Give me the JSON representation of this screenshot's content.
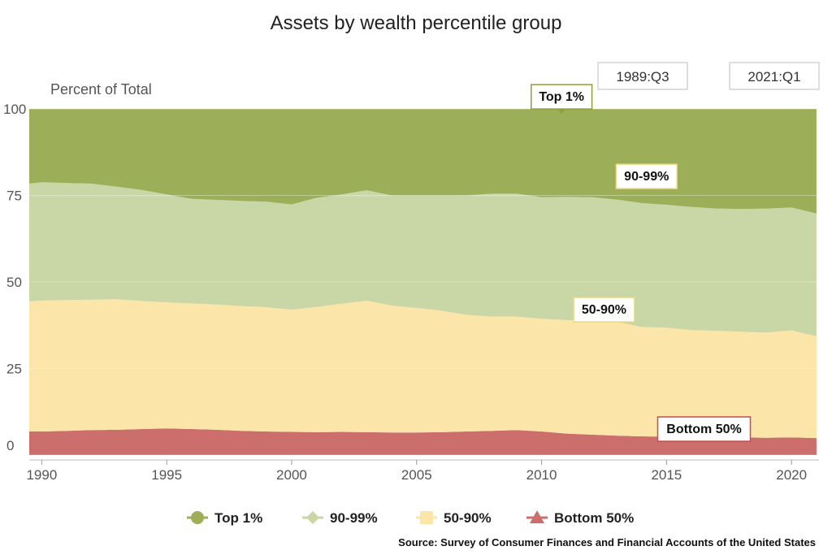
{
  "title": "Assets by wealth percentile group",
  "source": "Source: Survey of Consumer Finances and Financial Accounts of the United States",
  "date_range": {
    "start": "1989:Q3",
    "end": "2021:Q1"
  },
  "colors": {
    "top1": "#9caf58",
    "p90_99": "#c9d6a5",
    "p50_90": "#fbe5a8",
    "bottom50": "#cc6e6c",
    "callout_top1": "#8aa13c",
    "callout_bottom50": "#c0504d",
    "callout_default": "#e8d98a"
  },
  "chart_data": {
    "type": "area",
    "stacked": true,
    "ylabel": "Percent of Total",
    "xlabel": "",
    "xlim": [
      1989.5,
      2021.1
    ],
    "ylim": [
      0,
      100
    ],
    "yticks": [
      0,
      25,
      50,
      75,
      100
    ],
    "ytick_labels": [
      "0",
      "25",
      "50",
      "75",
      "100"
    ],
    "xticks": [
      1990,
      1995,
      2000,
      2005,
      2010,
      2015,
      2020
    ],
    "xtick_labels": [
      "1990",
      "1995",
      "2000",
      "2005",
      "2010",
      "2015",
      "2020"
    ],
    "grid": true,
    "legend_position": "bottom",
    "x": [
      1989.5,
      1990,
      1991,
      1992,
      1993,
      1994,
      1995,
      1996,
      1997,
      1998,
      1999,
      2000,
      2001,
      2002,
      2003,
      2004,
      2005,
      2006,
      2007,
      2008,
      2009,
      2010,
      2011,
      2012,
      2013,
      2014,
      2015,
      2016,
      2017,
      2018,
      2019,
      2020,
      2021
    ],
    "series": [
      {
        "name": "Bottom 50%",
        "key": "bottom50",
        "marker": "triangle",
        "values": [
          6.8,
          6.8,
          7.0,
          7.2,
          7.3,
          7.5,
          7.7,
          7.5,
          7.3,
          7.0,
          6.8,
          6.7,
          6.6,
          6.7,
          6.6,
          6.5,
          6.5,
          6.6,
          6.8,
          7.0,
          7.2,
          6.8,
          6.2,
          5.9,
          5.6,
          5.4,
          5.3,
          5.2,
          5.1,
          5.1,
          5.0,
          5.1,
          4.9
        ]
      },
      {
        "name": "50-90%",
        "key": "p50_90",
        "marker": "square",
        "values": [
          37.6,
          37.8,
          37.8,
          37.7,
          37.7,
          37.0,
          36.4,
          36.3,
          36.2,
          36.0,
          35.9,
          35.3,
          36.2,
          37.0,
          38.0,
          36.7,
          36.0,
          35.1,
          33.7,
          33.0,
          32.8,
          32.6,
          32.8,
          32.9,
          32.9,
          31.6,
          31.5,
          30.9,
          30.8,
          30.5,
          30.4,
          30.9,
          29.4
        ]
      },
      {
        "name": "90-99%",
        "key": "p90_99",
        "marker": "diamond",
        "values": [
          34.0,
          34.2,
          33.8,
          33.5,
          32.5,
          32.1,
          31.2,
          30.2,
          30.2,
          30.4,
          30.5,
          30.4,
          31.5,
          31.6,
          31.9,
          31.8,
          32.5,
          33.3,
          34.5,
          35.5,
          35.5,
          35.1,
          35.6,
          35.7,
          35.3,
          35.8,
          35.5,
          35.6,
          35.3,
          35.5,
          35.8,
          35.5,
          35.5
        ]
      },
      {
        "name": "Top 1%",
        "key": "top1",
        "marker": "circle",
        "values": [
          21.6,
          21.2,
          21.4,
          21.6,
          22.5,
          23.4,
          24.7,
          26.0,
          26.3,
          26.6,
          26.8,
          27.6,
          25.7,
          24.7,
          23.5,
          25.0,
          25.0,
          25.0,
          25.0,
          24.5,
          24.5,
          25.5,
          25.4,
          25.5,
          26.2,
          27.2,
          27.7,
          28.3,
          28.8,
          28.9,
          28.8,
          28.5,
          30.2
        ]
      }
    ],
    "annotations": [
      {
        "text": "Top 1%",
        "series": "top1",
        "x": 2010.8,
        "y": 99.5
      },
      {
        "text": "90-99%",
        "series": "p90_99",
        "x": 2014.2,
        "y": 80.5
      },
      {
        "text": "50-90%",
        "series": "p50_90",
        "x": 2012.5,
        "y": 42.0
      },
      {
        "text": "Bottom 50%",
        "series": "bottom50",
        "x": 2016.5,
        "y": 7.5
      }
    ]
  }
}
